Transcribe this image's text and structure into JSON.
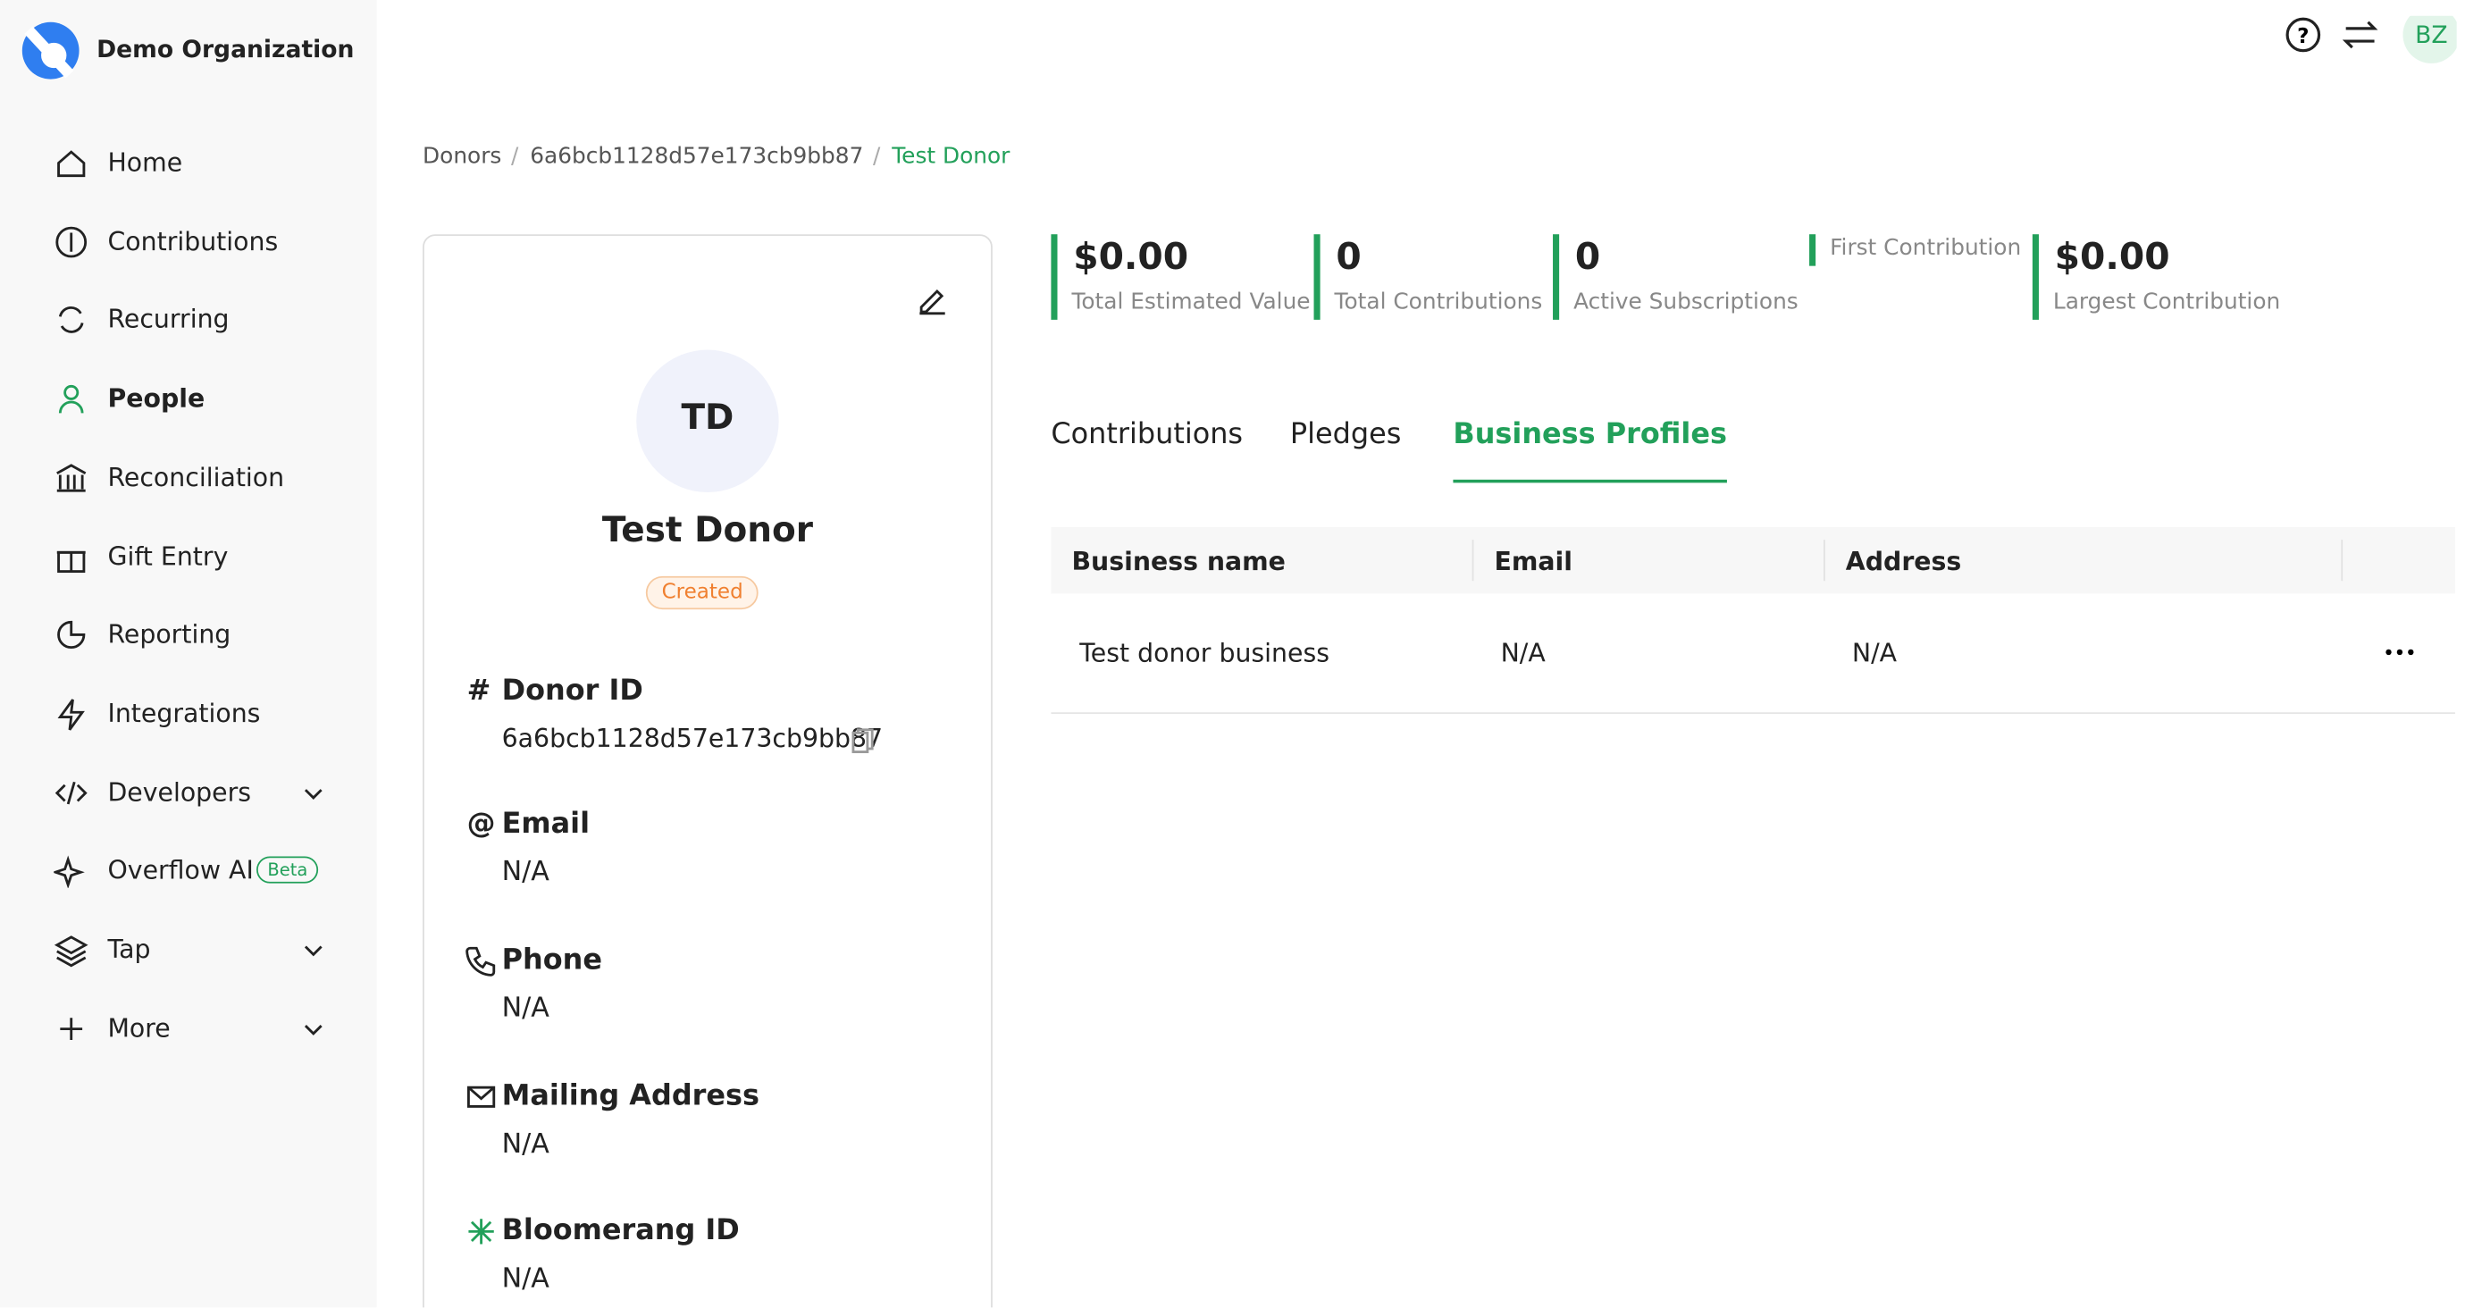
{
  "sidebar": {
    "org_name": "Demo Organization",
    "active_index": 3,
    "nav": [
      {
        "label": "Home"
      },
      {
        "label": "Contributions"
      },
      {
        "label": "Recurring"
      },
      {
        "label": "People"
      },
      {
        "label": "Reconciliation"
      },
      {
        "label": "Gift Entry"
      },
      {
        "label": "Reporting"
      },
      {
        "label": "Integrations"
      },
      {
        "label": "Developers",
        "expandable": true
      },
      {
        "label": "Overflow AI",
        "badge": "Beta"
      },
      {
        "label": "Tap",
        "expandable": true
      },
      {
        "label": "More",
        "expandable": true
      }
    ]
  },
  "header": {
    "user_initials": "BZ"
  },
  "breadcrumb": [
    "Donors",
    "6a6bcb1128d57e173cb9bb87",
    "Test Donor"
  ],
  "donor": {
    "initials": "TD",
    "name": "Test Donor",
    "status": "Created",
    "fields": [
      {
        "icon": "#",
        "label": "Donor ID",
        "value": "6a6bcb1128d57e173cb9bb87"
      },
      {
        "icon": "@",
        "label": "Email",
        "value": "N/A"
      },
      {
        "label": "Phone",
        "value": "N/A"
      },
      {
        "label": "Mailing Address",
        "value": "N/A"
      },
      {
        "label": "Bloomerang ID",
        "value": "N/A"
      }
    ]
  },
  "stats": [
    {
      "value": "$0.00",
      "label": "Total Estimated Value"
    },
    {
      "value": "0",
      "label": "Total Contributions"
    },
    {
      "value": "0",
      "label": "Active Subscriptions"
    },
    {
      "label": "First Contribution"
    },
    {
      "value": "$0.00",
      "label": "Largest Contribution"
    }
  ],
  "tabs": {
    "active_index": 2,
    "items": [
      "Contributions",
      "Pledges",
      "Business Profiles"
    ]
  },
  "table": {
    "columns": [
      "Business name",
      "Email",
      "Address"
    ],
    "rows": [
      [
        "Test donor business",
        "N/A",
        "N/A"
      ]
    ]
  }
}
